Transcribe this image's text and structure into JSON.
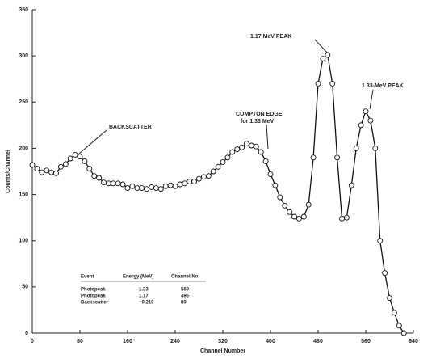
{
  "chart_data": {
    "type": "line",
    "xlabel": "Channel Number",
    "ylabel": "Counts/Channel",
    "x": [
      0,
      8,
      16,
      24,
      32,
      40,
      48,
      56,
      64,
      72,
      80,
      88,
      96,
      104,
      112,
      120,
      128,
      136,
      144,
      152,
      160,
      168,
      176,
      184,
      192,
      200,
      208,
      216,
      224,
      232,
      240,
      248,
      256,
      264,
      272,
      280,
      288,
      296,
      304,
      312,
      320,
      328,
      336,
      344,
      352,
      360,
      368,
      376,
      384,
      392,
      400,
      408,
      416,
      424,
      432,
      440,
      448,
      456,
      464,
      472,
      480,
      488,
      496,
      504,
      512,
      520,
      528,
      536,
      544,
      552,
      560,
      568,
      576,
      584,
      592,
      600,
      608,
      616,
      624
    ],
    "values": [
      182,
      178,
      174,
      176,
      174,
      173,
      180,
      183,
      189,
      193,
      191,
      186,
      178,
      170,
      168,
      163,
      162,
      162,
      162,
      161,
      157,
      159,
      157,
      157,
      156,
      158,
      157,
      156,
      159,
      160,
      159,
      161,
      162,
      164,
      164,
      167,
      169,
      170,
      175,
      180,
      185,
      190,
      196,
      199,
      201,
      205,
      203,
      202,
      196,
      186,
      172,
      160,
      147,
      138,
      131,
      126,
      124,
      126,
      139,
      190,
      270,
      297,
      301,
      270,
      190,
      124,
      125,
      160,
      200,
      225,
      240,
      230,
      200,
      100,
      65,
      38,
      22,
      8,
      0
    ],
    "color": "#111",
    "xlim": [
      0,
      640
    ],
    "xticks": [
      0,
      80,
      160,
      240,
      320,
      400,
      480,
      560,
      640
    ],
    "ylim": [
      0,
      350
    ],
    "yticks": [
      0,
      50,
      100,
      150,
      200,
      250,
      300,
      350
    ],
    "annotations": {
      "backscatter": "BACKSCATTER",
      "peak117": "1.17 MeV PEAK",
      "peak133": "1.33-MeV PEAK",
      "compton": "COMPTON EDGE",
      "compton2": "for 1.33 MeV"
    },
    "table": {
      "header": [
        "Event",
        "Energy (MeV)",
        "Channel No."
      ],
      "rows": [
        [
          "Photopeak",
          "1.33",
          "560"
        ],
        [
          "Photopeak",
          "1.17",
          "496"
        ],
        [
          "Backscatter",
          "~0.210",
          "80"
        ]
      ]
    }
  }
}
